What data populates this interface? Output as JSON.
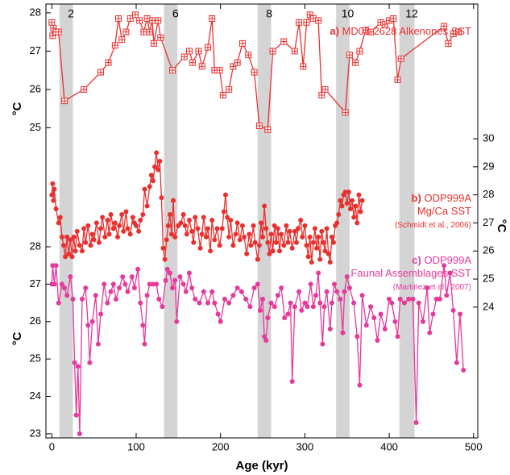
{
  "chart_data": {
    "type": "line",
    "x_label": "Age (kyr)",
    "y_label": "°C",
    "y2_label": "°C",
    "y3_label": "°C",
    "xlim": [
      -7,
      505
    ],
    "xticks": [
      0,
      100,
      200,
      300,
      400,
      500
    ],
    "ylim": [
      16.9,
      28.23
    ],
    "yticks": [
      25,
      26,
      27,
      28
    ],
    "y2lim": [
      19.34,
      34.8
    ],
    "y2ticks": [
      24,
      25,
      26,
      27,
      28,
      29,
      30
    ],
    "y3lim": [
      22.89,
      34.49
    ],
    "y3ticks": [
      23,
      24,
      25,
      26,
      27,
      28
    ],
    "bands": [
      {
        "label": "2",
        "xlim": [
          9,
          25
        ]
      },
      {
        "label": "6",
        "xlim": [
          133,
          149
        ]
      },
      {
        "label": "8",
        "xlim": [
          244,
          260
        ]
      },
      {
        "label": "10",
        "xlim": [
          337,
          353
        ]
      },
      {
        "label": "12",
        "xlim": [
          412,
          430
        ]
      }
    ],
    "series": [
      {
        "label": "a)",
        "name": "MD03-2628 Alkenones SST",
        "color": "#e8312f",
        "marker": "square-cross",
        "axis": "y",
        "x": [
          0,
          1,
          2,
          5,
          8,
          15,
          38,
          58,
          67,
          75,
          79,
          83,
          88,
          93,
          99,
          104,
          109,
          113,
          116,
          119,
          121,
          126,
          129,
          143,
          157,
          163,
          167,
          174,
          178,
          185,
          190,
          193,
          199,
          203,
          210,
          215,
          220,
          226,
          233,
          240,
          246,
          256,
          262,
          275,
          288,
          293,
          298,
          302,
          306,
          310,
          316,
          320,
          324,
          348,
          353,
          360,
          365,
          372,
          378,
          390,
          395,
          400,
          405,
          410,
          414,
          465,
          470,
          476,
          482
        ],
        "values": [
          27.75,
          27.4,
          27.6,
          27.5,
          27.5,
          25.7,
          26.0,
          26.45,
          26.7,
          27.15,
          27.85,
          27.3,
          27.5,
          27.85,
          27.95,
          27.8,
          27.5,
          27.85,
          27.5,
          27.8,
          27.2,
          27.8,
          27.35,
          26.5,
          26.85,
          27.0,
          26.7,
          27.0,
          26.6,
          27.1,
          27.85,
          26.5,
          26.5,
          25.85,
          26.0,
          26.6,
          26.7,
          27.2,
          26.9,
          26.45,
          25.05,
          24.95,
          27.0,
          27.25,
          27.0,
          27.75,
          26.6,
          27.75,
          27.95,
          27.85,
          27.8,
          25.85,
          26.0,
          25.4,
          26.9,
          26.7,
          27.0,
          27.55,
          27.5,
          27.75,
          27.7,
          27.8,
          27.85,
          26.25,
          26.8,
          27.65,
          27.2,
          27.45,
          27.5
        ]
      },
      {
        "label": "b)",
        "name": "ODP999A",
        "name2": "Mg/Ca SST",
        "source": "(Schmidt et al., 2006)",
        "color": "#e8312f",
        "marker": "circle",
        "axis": "y2",
        "x": [
          0,
          1,
          2,
          3,
          5,
          8,
          10,
          12,
          14,
          16,
          18,
          20,
          22,
          24,
          26,
          28,
          30,
          33,
          36,
          38,
          40,
          43,
          46,
          48,
          50,
          53,
          56,
          58,
          60,
          63,
          66,
          68,
          70,
          73,
          75,
          78,
          80,
          83,
          85,
          88,
          90,
          93,
          96,
          98,
          100,
          103,
          105,
          108,
          110,
          113,
          116,
          118,
          120,
          122,
          124,
          126,
          128,
          130,
          132,
          134,
          136,
          138,
          140,
          142,
          144,
          146,
          150,
          153,
          156,
          158,
          160,
          163,
          166,
          168,
          170,
          173,
          176,
          178,
          180,
          183,
          185,
          188,
          190,
          193,
          196,
          199,
          202,
          204,
          206,
          208,
          210,
          212,
          215,
          218,
          220,
          223,
          226,
          228,
          231,
          234,
          236,
          239,
          241,
          244,
          246,
          248,
          250,
          252,
          254,
          256,
          258,
          260,
          262,
          264,
          266,
          268,
          270,
          272,
          275,
          278,
          280,
          282,
          285,
          288,
          290,
          292,
          295,
          297,
          300,
          302,
          304,
          306,
          308,
          310,
          312,
          314,
          316,
          318,
          320,
          322,
          324,
          326,
          328,
          330,
          332,
          334,
          336,
          338,
          340,
          342,
          344,
          346,
          348,
          350,
          352,
          354,
          356,
          358,
          360,
          362,
          364,
          366,
          368
        ],
        "values": [
          28.0,
          28.4,
          27.8,
          28.2,
          27.5,
          27.0,
          27.2,
          26.5,
          26.2,
          25.8,
          26.5,
          25.9,
          26.4,
          25.8,
          26.5,
          26.0,
          26.7,
          26.2,
          26.0,
          26.8,
          26.3,
          26.9,
          26.2,
          26.6,
          26.4,
          27.0,
          26.3,
          26.8,
          27.2,
          26.5,
          27.1,
          26.6,
          27.3,
          26.8,
          27.0,
          26.5,
          26.9,
          27.3,
          26.7,
          27.4,
          26.8,
          26.6,
          27.2,
          27.0,
          26.9,
          26.7,
          27.1,
          27.3,
          28.2,
          27.6,
          28.3,
          28.7,
          28.5,
          29.0,
          29.5,
          28.9,
          29.2,
          27.9,
          26.1,
          25.7,
          26.4,
          26.9,
          27.3,
          26.6,
          27.8,
          26.5,
          26.9,
          27.0,
          27.3,
          26.9,
          26.6,
          27.1,
          26.7,
          26.3,
          27.2,
          26.8,
          26.1,
          26.6,
          27.2,
          26.5,
          26.8,
          26.0,
          27.1,
          26.4,
          26.8,
          26.2,
          26.8,
          27.4,
          28.0,
          27.2,
          26.5,
          27.1,
          26.2,
          26.6,
          27.0,
          26.4,
          26.9,
          26.5,
          25.9,
          26.6,
          26.2,
          26.9,
          26.3,
          25.7,
          26.2,
          27.0,
          26.5,
          27.6,
          26.8,
          26.3,
          25.9,
          26.6,
          26.0,
          26.9,
          26.3,
          26.8,
          26.0,
          26.6,
          26.2,
          26.9,
          26.3,
          26.7,
          26.1,
          26.7,
          26.3,
          26.8,
          27.1,
          26.5,
          26.9,
          26.2,
          25.8,
          26.5,
          25.6,
          26.3,
          26.8,
          26.1,
          26.5,
          25.7,
          26.7,
          26.3,
          26.0,
          26.8,
          25.9,
          25.6,
          26.5,
          26.3,
          26.9,
          27.0,
          27.3,
          27.8,
          27.6,
          28.0,
          28.1,
          27.7,
          28.1,
          27.5,
          27.8,
          27.2,
          27.6,
          27.0,
          28.0,
          27.4,
          27.8
        ]
      },
      {
        "label": "c)",
        "name": "ODP999A",
        "name2": "Faunal Assemblages SST",
        "source": "(Martinez et al., 2007)",
        "color": "#e5399b",
        "marker": "circle",
        "axis": "y3",
        "x": [
          0,
          1,
          3,
          5,
          8,
          12,
          15,
          18,
          22,
          25,
          27,
          29,
          31,
          33,
          36,
          40,
          43,
          45,
          48,
          52,
          55,
          58,
          62,
          66,
          70,
          73,
          76,
          80,
          84,
          87,
          90,
          95,
          98,
          102,
          105,
          108,
          110,
          113,
          116,
          120,
          124,
          127,
          131,
          135,
          137,
          140,
          143,
          146,
          148,
          152,
          156,
          159,
          163,
          166,
          170,
          175,
          180,
          185,
          190,
          193,
          197,
          200,
          205,
          210,
          215,
          220,
          225,
          230,
          235,
          240,
          244,
          247,
          250,
          252,
          254,
          256,
          260,
          264,
          268,
          272,
          276,
          280,
          283,
          285,
          288,
          293,
          296,
          300,
          303,
          307,
          310,
          313,
          316,
          318,
          321,
          323,
          326,
          330,
          332,
          335,
          338,
          342,
          345,
          347,
          350,
          353,
          358,
          362,
          365,
          368,
          373,
          378,
          382,
          386,
          390,
          395,
          400,
          403,
          407,
          410,
          413,
          418,
          423,
          428,
          432,
          435,
          440,
          445,
          448,
          452,
          456,
          460,
          465,
          468,
          472,
          476,
          480,
          484,
          488
        ],
        "values": [
          27.0,
          27.5,
          27.0,
          27.5,
          26.5,
          27.0,
          26.9,
          26.7,
          27.2,
          26.6,
          24.9,
          23.5,
          24.8,
          23.0,
          26.6,
          26.9,
          25.9,
          24.9,
          26.0,
          26.7,
          25.4,
          26.2,
          27.0,
          26.5,
          26.8,
          27.0,
          26.6,
          26.9,
          27.2,
          27.0,
          26.8,
          27.2,
          26.9,
          27.4,
          26.5,
          25.9,
          25.4,
          26.7,
          27.0,
          27.0,
          27.0,
          26.6,
          26.4,
          27.1,
          27.4,
          27.3,
          26.9,
          27.1,
          26.0,
          27.2,
          27.0,
          26.8,
          27.3,
          26.9,
          26.6,
          26.5,
          26.8,
          26.5,
          26.8,
          26.5,
          26.2,
          26.0,
          26.6,
          26.5,
          26.7,
          26.9,
          26.8,
          26.6,
          26.4,
          26.9,
          27.0,
          26.3,
          26.6,
          25.6,
          25.5,
          26.1,
          26.5,
          26.4,
          26.7,
          26.9,
          26.1,
          26.2,
          26.5,
          24.4,
          26.4,
          26.8,
          26.3,
          26.5,
          26.4,
          27.0,
          26.4,
          26.7,
          27.3,
          26.5,
          25.4,
          26.4,
          26.8,
          25.8,
          26.5,
          27.0,
          26.8,
          26.6,
          25.7,
          26.8,
          27.2,
          26.9,
          26.5,
          25.6,
          24.3,
          26.7,
          25.9,
          26.4,
          26.1,
          25.5,
          26.2,
          25.8,
          26.6,
          26.5,
          26.0,
          25.6,
          26.6,
          26.5,
          26.6,
          26.6,
          23.3,
          26.5,
          26.0,
          26.9,
          25.7,
          26.2,
          26.6,
          26.6,
          27.5,
          26.7,
          27.3,
          26.3,
          24.9,
          26.2,
          24.7
        ]
      }
    ]
  }
}
